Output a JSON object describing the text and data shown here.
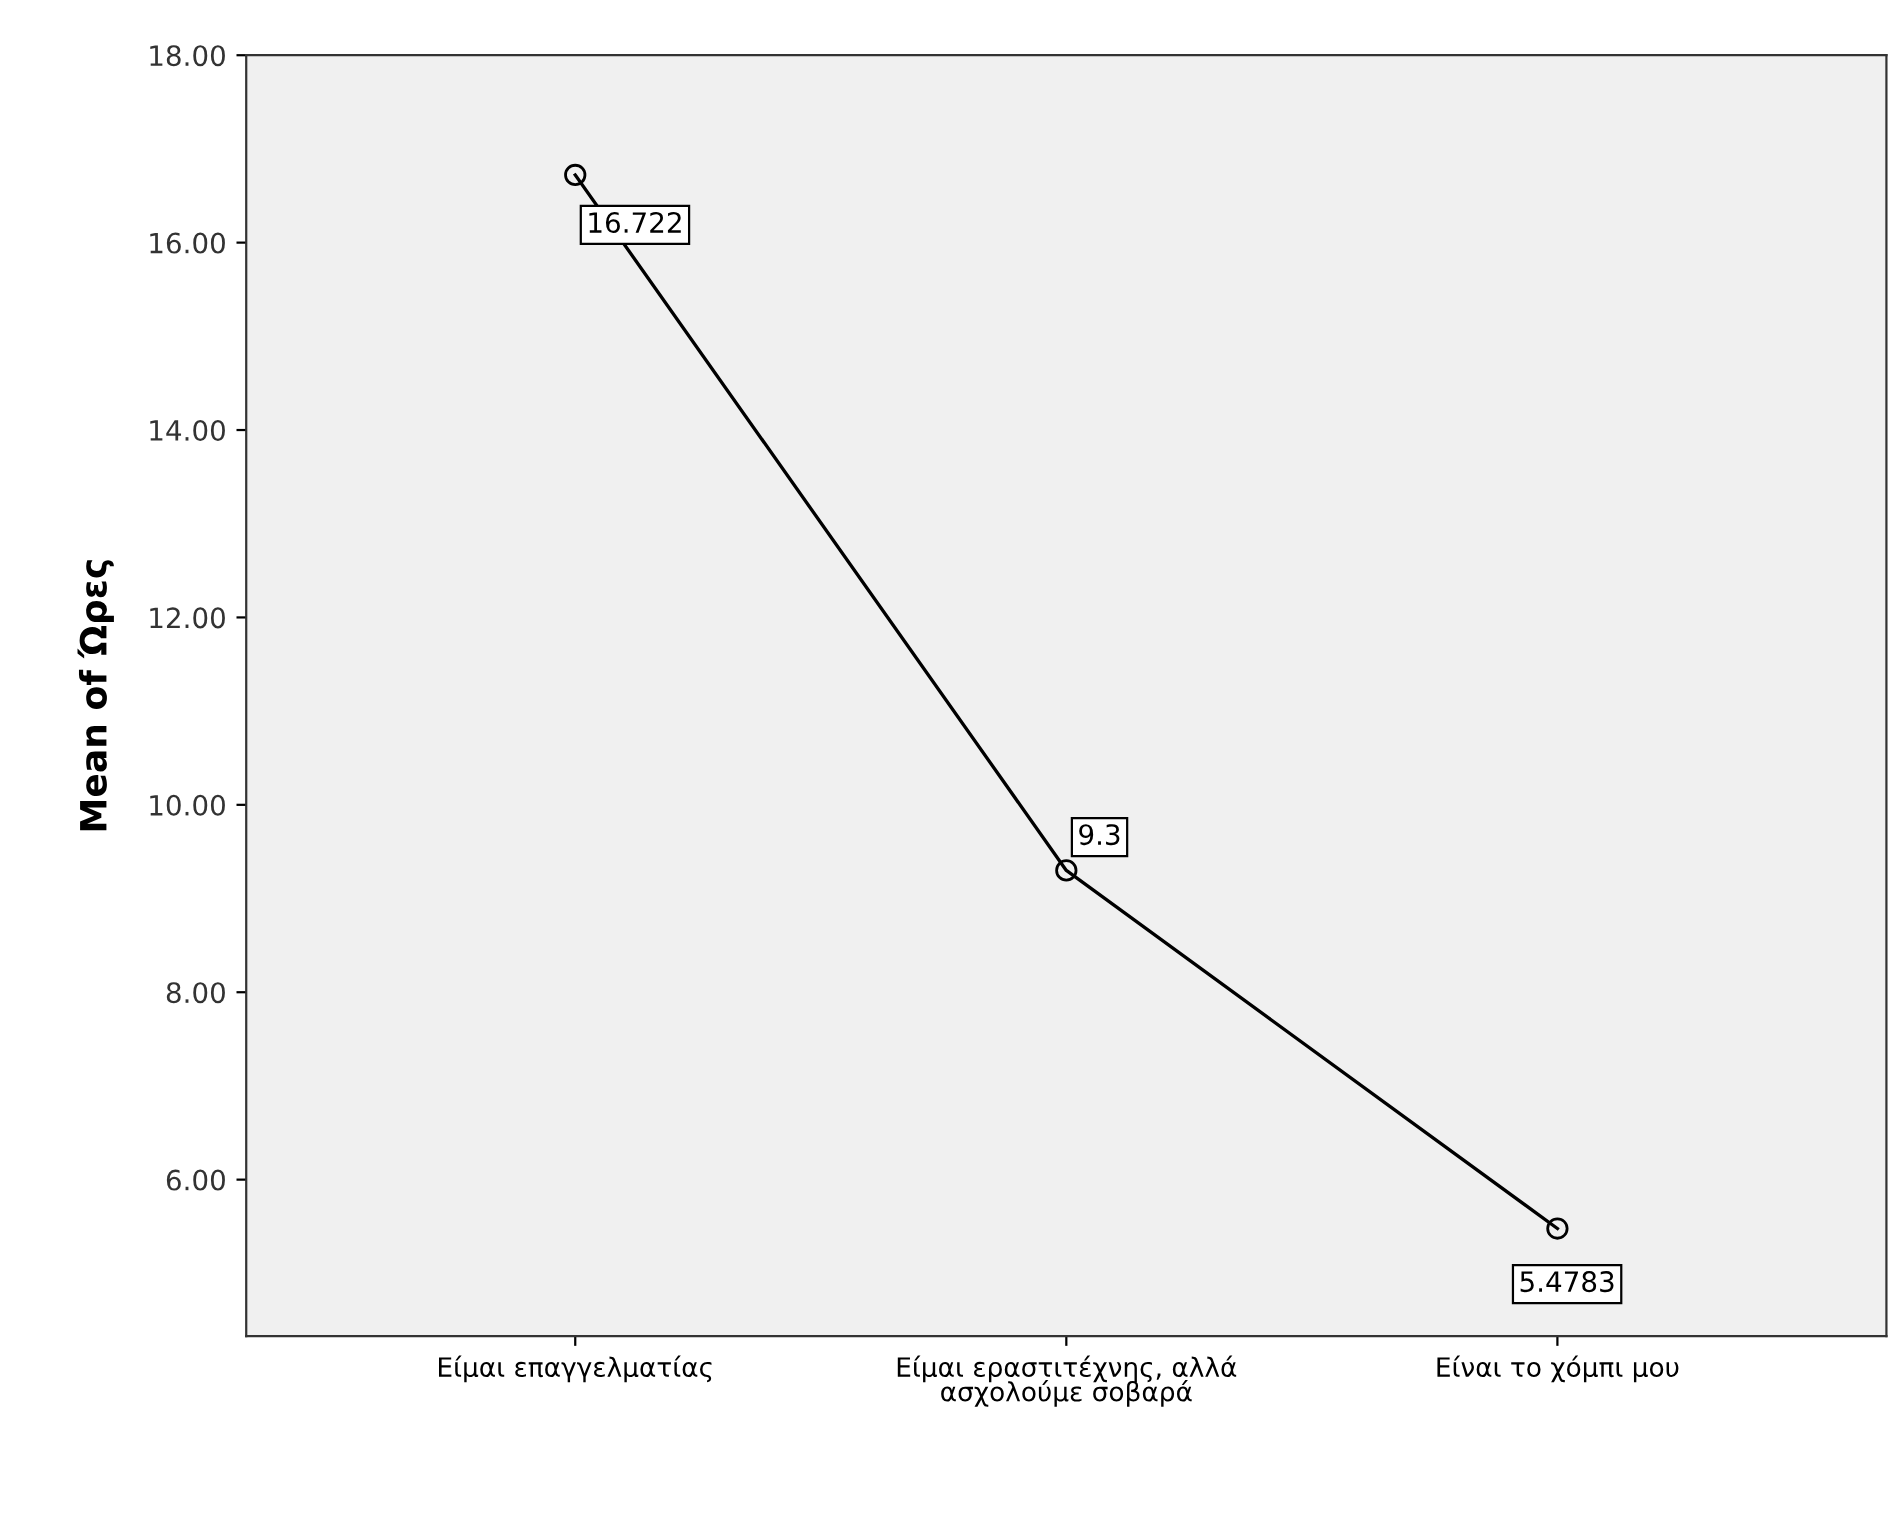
{
  "chart_data": {
    "type": "line",
    "ylabel": "Mean of Ώρες",
    "categories": [
      "Είμαι επαγγελματίας",
      "Είμαι εραστιτέχνης, αλλά\nασχολούμε σοβαρά",
      "Είναι το χόμπι μου"
    ],
    "values": [
      16.722,
      9.3,
      5.4783
    ],
    "value_labels": [
      "16.722",
      "9.3",
      "5.4783"
    ],
    "color": "#000000",
    "marker": "circle",
    "ylim": [
      4.33,
      18
    ],
    "yticks": [
      {
        "value": 6,
        "label": "6.00"
      },
      {
        "value": 8,
        "label": "8.00"
      },
      {
        "value": 10,
        "label": "10.00"
      },
      {
        "value": 12,
        "label": "12.00"
      },
      {
        "value": 14,
        "label": "14.00"
      },
      {
        "value": 16,
        "label": "16.00"
      },
      {
        "value": 18,
        "label": "18.00"
      }
    ],
    "grid": false
  }
}
